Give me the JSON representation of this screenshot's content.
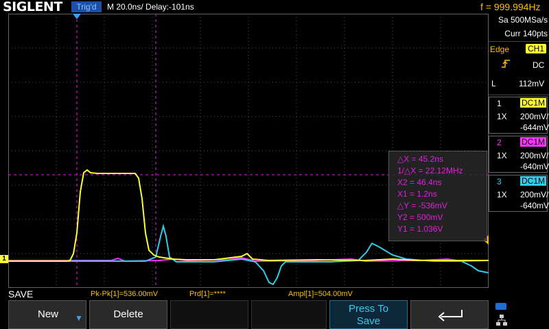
{
  "topbar": {
    "brand": "SIGLENT",
    "trigger_status": "Trig'd",
    "timebase": "M 20.0ns/  Delay:-101ns",
    "frequency": "f = 999.994Hz"
  },
  "acquisition": {
    "sample_rate": "Sa 500MSa/s",
    "points": "Curr 140pts"
  },
  "trigger": {
    "type_label": "Edge",
    "source": "CH1",
    "coupling": "DC",
    "level_label": "L",
    "level": "112mV"
  },
  "channels": [
    {
      "number": "1",
      "coupling": "DC1M",
      "probe": "1X",
      "scale": "200mV/",
      "offset": "-644mV",
      "color": "#ffff33"
    },
    {
      "number": "2",
      "coupling": "DC1M",
      "probe": "1X",
      "scale": "200mV/",
      "offset": "-640mV",
      "color": "#ff33ff"
    },
    {
      "number": "3",
      "coupling": "DC1M",
      "probe": "1X",
      "scale": "200mV/",
      "offset": "-640mV",
      "color": "#33ccee"
    }
  ],
  "cursors": {
    "dx": "△X = 45.2ns",
    "inv_dx": "1/△X = 22.12MHz",
    "x2": "X2 = 46.4ns",
    "x1": "X1 = 1.2ns",
    "dy": "△Y = -536mV",
    "y2": "Y2 = 500mV",
    "y1": "Y1 = 1.036V"
  },
  "ch1_marker": "1",
  "bottom": {
    "mode": "SAVE",
    "measurements": [
      "Pk-Pk[1]=536.00mV",
      "Prd[1]=****",
      "Ampl[1]=504.00mV"
    ]
  },
  "softkeys": {
    "new": "New",
    "delete": "Delete",
    "press_to_save_line1": "Press To",
    "press_to_save_line2": "Save",
    "return_icon": "return-arrow-icon"
  },
  "colors": {
    "ch1": "#ffff33",
    "ch2": "#ff33ff",
    "ch3": "#33ccee",
    "accent": "#ffbf00",
    "cursor": "#e020e0"
  }
}
